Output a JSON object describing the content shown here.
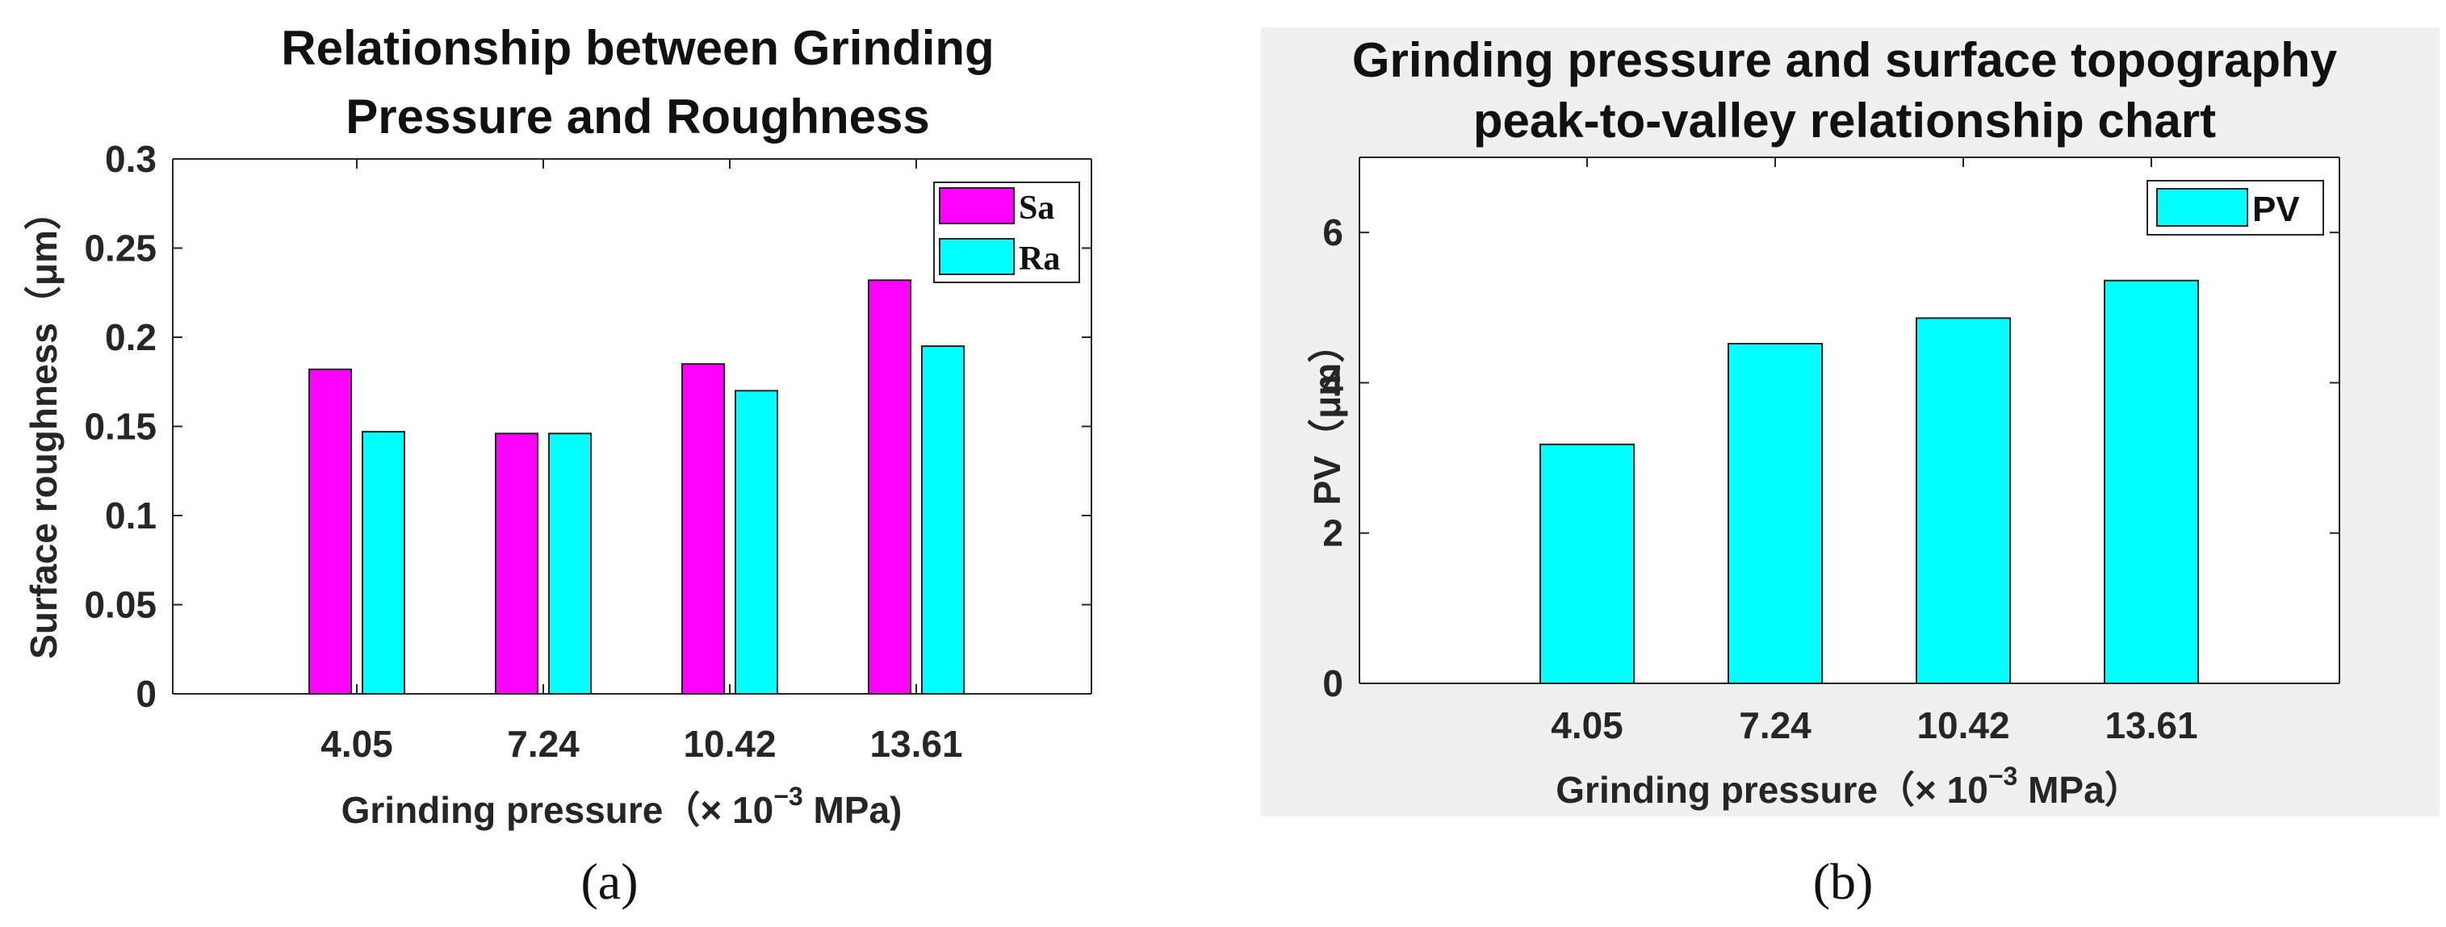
{
  "chart_data": [
    {
      "type": "bar",
      "title_lines": [
        "Relationship between Grinding",
        "Pressure and Roughness"
      ],
      "categories": [
        "4.05",
        "7.24",
        "10.42",
        "13.61"
      ],
      "series": [
        {
          "name": "Sa",
          "color": "#ff00ff",
          "values": [
            0.182,
            0.146,
            0.185,
            0.232
          ]
        },
        {
          "name": "Ra",
          "color": "#00ffff",
          "values": [
            0.147,
            0.146,
            0.17,
            0.195
          ]
        }
      ],
      "ylabel": "Surface roughness（μm）",
      "xlabel_prefix": "Grinding pressure（× 10",
      "xlabel_exp": "−3",
      "xlabel_suffix": " MPa)",
      "ylim": [
        0,
        0.3
      ],
      "yticks": [
        "0",
        "0.05",
        "0.1",
        "0.15",
        "0.2",
        "0.25",
        "0.3"
      ],
      "legend_position": "top-right",
      "caption": "(a)"
    },
    {
      "type": "bar",
      "title_lines": [
        "Grinding pressure and surface topography",
        "peak-to-valley relationship chart"
      ],
      "categories": [
        "4.05",
        "7.24",
        "10.42",
        "13.61"
      ],
      "series": [
        {
          "name": "PV",
          "color": "#00ffff",
          "values": [
            3.18,
            4.52,
            4.86,
            5.36
          ]
        }
      ],
      "ylabel": "PV（μm）",
      "xlabel_prefix": "Grinding pressure（× 10",
      "xlabel_exp": "−3",
      "xlabel_suffix": " MPa）",
      "ylim": [
        0,
        7
      ],
      "yticks": [
        "0",
        "2",
        "4",
        "6"
      ],
      "legend_position": "top-right",
      "caption": "(b)"
    }
  ]
}
